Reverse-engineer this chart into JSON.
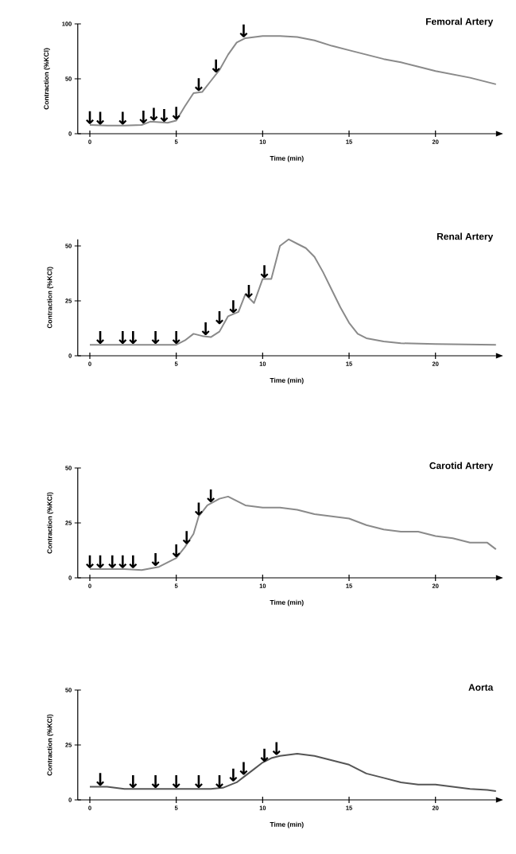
{
  "chart_data": [
    {
      "type": "line",
      "title": "Femoral Artery",
      "xlabel": "Time (min)",
      "ylabel": "Contraction (%KCl)",
      "color": "#8a8a8a",
      "xlim": [
        -0.7,
        23.5
      ],
      "xticks": [
        0,
        5,
        10,
        15,
        20
      ],
      "ylim": [
        0,
        100
      ],
      "yticks": [
        0,
        50,
        100
      ],
      "x": [
        0,
        1,
        2,
        3,
        3.5,
        4.5,
        5,
        5.5,
        6,
        6.5,
        7,
        7.5,
        8,
        8.5,
        9,
        10,
        11,
        12,
        13,
        14,
        15,
        16,
        17,
        18,
        19,
        20,
        21,
        22,
        23,
        23.5
      ],
      "values": [
        8,
        7.5,
        7.5,
        8,
        11,
        10,
        12,
        25,
        37,
        38,
        48,
        58,
        72,
        83,
        87,
        89,
        89,
        88,
        85,
        80,
        76,
        72,
        68,
        65,
        61,
        57,
        54,
        51,
        47,
        45
      ],
      "annotations": [
        {
          "text": "↓",
          "x": 0,
          "y": 8
        },
        {
          "text": "↓",
          "x": 0.6,
          "y": 7.5
        },
        {
          "text": "↓",
          "x": 1.9,
          "y": 7.5
        },
        {
          "text": "↓",
          "x": 3.1,
          "y": 8.5
        },
        {
          "text": "↓",
          "x": 3.7,
          "y": 11
        },
        {
          "text": "↓",
          "x": 4.3,
          "y": 10
        },
        {
          "text": "↓",
          "x": 5.0,
          "y": 12
        },
        {
          "text": "↓",
          "x": 6.3,
          "y": 38
        },
        {
          "text": "↓",
          "x": 7.3,
          "y": 55
        },
        {
          "text": "↓",
          "x": 8.9,
          "y": 87
        }
      ]
    },
    {
      "type": "line",
      "title": "Renal Artery",
      "xlabel": "Time (min)",
      "ylabel": "Contraction (%KCl)",
      "color": "#8a8a8a",
      "xlim": [
        -0.7,
        23.5
      ],
      "xticks": [
        0,
        5,
        10,
        15,
        20
      ],
      "ylim": [
        0,
        53
      ],
      "yticks": [
        0,
        25,
        50
      ],
      "x": [
        0,
        5,
        5.5,
        6,
        6.5,
        7,
        7.5,
        8,
        8.3,
        8.6,
        9,
        9.5,
        10,
        10.5,
        11,
        11.5,
        12,
        12.5,
        13,
        13.5,
        14,
        14.5,
        15,
        15.5,
        16,
        17,
        18,
        20,
        23.5
      ],
      "values": [
        5,
        5,
        7,
        10,
        9,
        8.5,
        11,
        18,
        19,
        20,
        28,
        24,
        35,
        35,
        50,
        53,
        51,
        49,
        45,
        38,
        30,
        22,
        15,
        10,
        8,
        6.5,
        5.7,
        5.3,
        5
      ],
      "annotations": [
        {
          "text": "↓",
          "x": 0.6,
          "y": 5
        },
        {
          "text": "↓",
          "x": 1.9,
          "y": 5
        },
        {
          "text": "↓",
          "x": 2.5,
          "y": 5
        },
        {
          "text": "↓",
          "x": 3.8,
          "y": 5
        },
        {
          "text": "↓",
          "x": 5.0,
          "y": 5
        },
        {
          "text": "↓",
          "x": 6.7,
          "y": 9
        },
        {
          "text": "↓",
          "x": 7.5,
          "y": 14
        },
        {
          "text": "↓",
          "x": 8.3,
          "y": 19
        },
        {
          "text": "↓",
          "x": 9.2,
          "y": 26
        },
        {
          "text": "↓",
          "x": 10.1,
          "y": 35
        }
      ]
    },
    {
      "type": "line",
      "title": "Carotid Artery",
      "xlabel": "Time (min)",
      "ylabel": "Contraction (%KCl)",
      "color": "#8a8a8a",
      "xlim": [
        -0.7,
        23.5
      ],
      "xticks": [
        0,
        5,
        10,
        15,
        20
      ],
      "ylim": [
        0,
        50
      ],
      "yticks": [
        0,
        25,
        50
      ],
      "x": [
        0,
        2,
        3,
        4,
        4.5,
        5,
        5.5,
        6,
        6.3,
        6.8,
        7.5,
        8,
        8.5,
        9,
        10,
        11,
        12,
        13,
        14,
        15,
        16,
        17,
        18,
        19,
        20,
        21,
        22,
        23,
        23.5
      ],
      "values": [
        4,
        4,
        3.5,
        5,
        7,
        9,
        14,
        20,
        28,
        33,
        36,
        37,
        35,
        33,
        32,
        32,
        31,
        29,
        28,
        27,
        24,
        22,
        21,
        21,
        19,
        18,
        16,
        16,
        13
      ],
      "annotations": [
        {
          "text": "↓",
          "x": 0,
          "y": 4
        },
        {
          "text": "↓",
          "x": 0.6,
          "y": 4
        },
        {
          "text": "↓",
          "x": 1.3,
          "y": 4
        },
        {
          "text": "↓",
          "x": 1.9,
          "y": 4
        },
        {
          "text": "↓",
          "x": 2.5,
          "y": 4
        },
        {
          "text": "↓",
          "x": 3.8,
          "y": 5
        },
        {
          "text": "↓",
          "x": 5.0,
          "y": 9
        },
        {
          "text": "↓",
          "x": 5.6,
          "y": 15
        },
        {
          "text": "↓",
          "x": 6.3,
          "y": 28
        },
        {
          "text": "↓",
          "x": 7.0,
          "y": 34
        }
      ]
    },
    {
      "type": "line",
      "title": "Aorta",
      "xlabel": "Time (min)",
      "ylabel": "Contraction (%KCl)",
      "color": "#555555",
      "xlim": [
        -0.7,
        23.5
      ],
      "xticks": [
        0,
        5,
        10,
        15,
        20
      ],
      "ylim": [
        0,
        50
      ],
      "yticks": [
        0,
        25,
        50
      ],
      "x": [
        0,
        1,
        2,
        3,
        4,
        5,
        6,
        7,
        7.7,
        8.5,
        9,
        9.5,
        10,
        10.5,
        11,
        12,
        13,
        14,
        15,
        16,
        17,
        18,
        19,
        20,
        21,
        22,
        23,
        23.5
      ],
      "values": [
        6,
        6,
        5,
        5,
        5,
        5,
        5,
        5,
        5.5,
        8,
        11,
        14,
        17,
        19,
        20,
        21,
        20,
        18,
        16,
        12,
        10,
        8,
        7,
        7,
        6,
        5,
        4.5,
        4
      ],
      "annotations": [
        {
          "text": "↓",
          "x": 0.6,
          "y": 6
        },
        {
          "text": "↓",
          "x": 2.5,
          "y": 5
        },
        {
          "text": "↓",
          "x": 3.8,
          "y": 5
        },
        {
          "text": "↓",
          "x": 5.0,
          "y": 5
        },
        {
          "text": "↓",
          "x": 6.3,
          "y": 5
        },
        {
          "text": "↓",
          "x": 7.5,
          "y": 5
        },
        {
          "text": "↓",
          "x": 8.3,
          "y": 8
        },
        {
          "text": "↓",
          "x": 8.9,
          "y": 11
        },
        {
          "text": "↓",
          "x": 10.1,
          "y": 17
        },
        {
          "text": "↓",
          "x": 10.8,
          "y": 20
        }
      ]
    }
  ]
}
